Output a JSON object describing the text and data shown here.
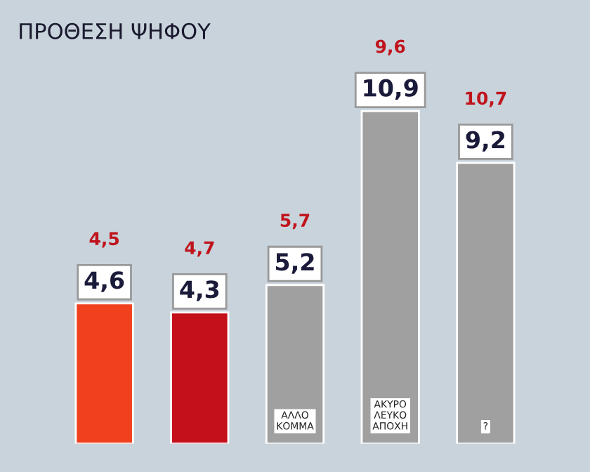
{
  "chart_data": {
    "type": "bar",
    "title": "ΠΡΟΘΕΣΗ ΨΗΦΟΥ",
    "categories": [
      null,
      null,
      "ΑΛΛΟ ΚΟΜΜΑ",
      "ΑΚΥΡΟ ΛΕΥΚΟ ΑΠΟΧΗ",
      "?"
    ],
    "values": [
      4.6,
      4.3,
      5.2,
      10.9,
      9.2
    ],
    "value_labels": [
      "4,6",
      "4,3",
      "5,2",
      "10,9",
      "9,2"
    ],
    "colors": [
      "#f0401e",
      "#c4101a",
      "#a0a0a0",
      "#a0a0a0",
      "#a0a0a0"
    ],
    "annotations": [
      "4,5",
      "4,7",
      "5,7",
      "9,6",
      "10,7"
    ],
    "tick_labels": false,
    "grid": false,
    "legend": false
  }
}
